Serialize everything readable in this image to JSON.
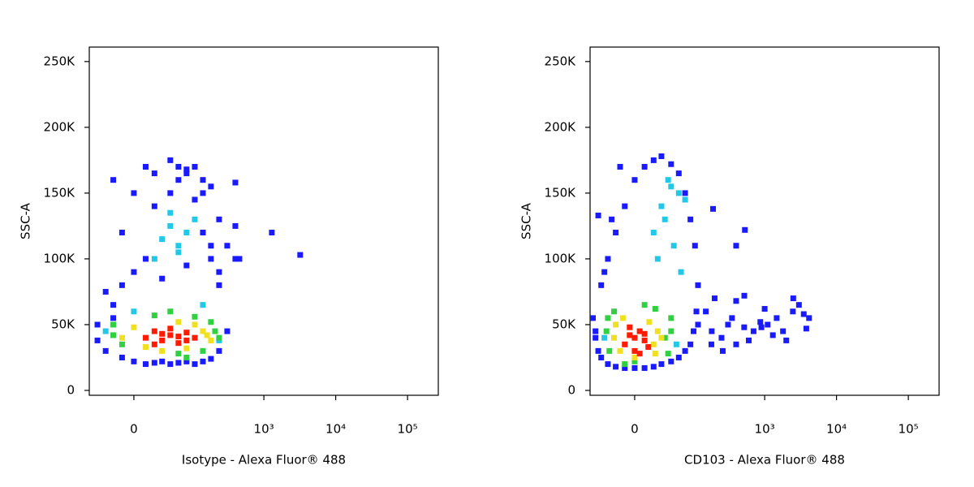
{
  "chart_data": [
    {
      "type": "scatter",
      "x_label": "Isotype - Alexa Fluor® 488",
      "y_label": "SSC-A",
      "xscale": "asinh",
      "xscale_width": 31,
      "xlim": [
        -61,
        268000
      ],
      "ylim": [
        -3700,
        261000
      ],
      "xticks": [
        0,
        {
          "value": 1000,
          "label": "10³"
        },
        {
          "value": 10000,
          "label": "10⁴"
        },
        {
          "value": 100000,
          "label": "10⁵"
        }
      ],
      "yticks": [
        0,
        {
          "value": 50000,
          "label": "50K"
        },
        {
          "value": 100000,
          "label": "100K"
        },
        {
          "value": 150000,
          "label": "150K"
        },
        {
          "value": 200000,
          "label": "200K"
        },
        {
          "value": 250000,
          "label": "250K"
        }
      ],
      "series": [
        {
          "color": "#1a1aff",
          "x": [
            -45,
            -32,
            -22,
            -12,
            0,
            12,
            22,
            32,
            45,
            61,
            81,
            107,
            140,
            182,
            237,
            308,
            400,
            456,
            1290,
            3200,
            -22,
            -12,
            0,
            12,
            22,
            45,
            61,
            81,
            107,
            140,
            182,
            237,
            -32,
            -45,
            -22,
            0,
            22,
            61,
            107,
            140,
            182,
            237,
            308,
            400,
            12,
            45,
            81,
            140,
            -12,
            32,
            81,
            182,
            237,
            400
          ],
          "y": [
            38000,
            30000,
            55000,
            25000,
            22000,
            20000,
            21000,
            22000,
            20000,
            21000,
            22000,
            20000,
            22000,
            24000,
            30000,
            45000,
            100000,
            100000,
            120000,
            103000,
            65000,
            80000,
            90000,
            100000,
            140000,
            150000,
            160000,
            165000,
            170000,
            160000,
            155000,
            130000,
            75000,
            50000,
            160000,
            150000,
            165000,
            170000,
            145000,
            120000,
            100000,
            90000,
            110000,
            125000,
            170000,
            175000,
            168000,
            150000,
            120000,
            85000,
            95000,
            110000,
            80000,
            158000
          ]
        },
        {
          "color": "#22c8e8",
          "x": [
            32,
            45,
            61,
            81,
            45,
            61,
            22,
            107,
            -32,
            237,
            0,
            140
          ],
          "y": [
            115000,
            125000,
            110000,
            120000,
            135000,
            105000,
            100000,
            130000,
            45000,
            38000,
            60000,
            65000
          ]
        },
        {
          "color": "#30d040",
          "x": [
            -22,
            -12,
            182,
            237,
            22,
            140,
            61,
            107,
            -22,
            208,
            45,
            81
          ],
          "y": [
            50000,
            35000,
            52000,
            40000,
            57000,
            30000,
            28000,
            56000,
            42000,
            45000,
            60000,
            25000
          ]
        },
        {
          "color": "#f0e020",
          "x": [
            0,
            12,
            140,
            182,
            61,
            107,
            32,
            81,
            -12,
            160
          ],
          "y": [
            48000,
            33000,
            45000,
            38000,
            52000,
            50000,
            30000,
            32000,
            40000,
            42000
          ]
        },
        {
          "color": "#ff1a00",
          "x": [
            12,
            22,
            32,
            45,
            61,
            81,
            107,
            22,
            45,
            81,
            32,
            61
          ],
          "y": [
            40000,
            45000,
            38000,
            42000,
            36000,
            44000,
            40000,
            35000,
            47000,
            38000,
            43000,
            41000
          ]
        }
      ]
    },
    {
      "type": "scatter",
      "x_label": "CD103 - Alexa Fluor® 488",
      "y_label": "SSC-A",
      "xscale": "asinh",
      "xscale_width": 31,
      "xlim": [
        -61,
        268000
      ],
      "ylim": [
        -3700,
        261000
      ],
      "xticks": [
        0,
        {
          "value": 1000,
          "label": "10³"
        },
        {
          "value": 10000,
          "label": "10⁴"
        },
        {
          "value": 100000,
          "label": "10⁵"
        }
      ],
      "yticks": [
        0,
        {
          "value": 50000,
          "label": "50K"
        },
        {
          "value": 100000,
          "label": "100K"
        },
        {
          "value": 150000,
          "label": "150K"
        },
        {
          "value": 200000,
          "label": "200K"
        },
        {
          "value": 250000,
          "label": "250K"
        }
      ],
      "series": [
        {
          "color": "#1a1aff",
          "x": [
            -50,
            -45,
            -40,
            -30,
            -20,
            -10,
            0,
            10,
            20,
            30,
            45,
            60,
            75,
            90,
            100,
            110,
            116,
            -40,
            -30,
            -20,
            -10,
            0,
            10,
            20,
            30,
            45,
            60,
            75,
            90,
            105,
            -55,
            -50,
            -35,
            -25,
            -15,
            116,
            182,
            308,
            518,
            870,
            1470,
            2470,
            4150,
            150,
            250,
            400,
            700,
            1100,
            1800,
            3000,
            200,
            350,
            600,
            1000,
            2000,
            3500,
            260,
            520,
            1300,
            2500,
            3800,
            180,
            400,
            900,
            -45,
            190,
            530,
            400
          ],
          "y": [
            40000,
            30000,
            25000,
            20000,
            18000,
            17000,
            17000,
            17000,
            18000,
            20000,
            22000,
            25000,
            30000,
            35000,
            45000,
            60000,
            80000,
            80000,
            100000,
            120000,
            140000,
            160000,
            170000,
            175000,
            178000,
            172000,
            165000,
            150000,
            130000,
            110000,
            55000,
            45000,
            90000,
            130000,
            170000,
            50000,
            45000,
            50000,
            48000,
            52000,
            55000,
            60000,
            55000,
            60000,
            40000,
            35000,
            45000,
            50000,
            45000,
            65000,
            70000,
            55000,
            38000,
            62000,
            38000,
            58000,
            30000,
            72000,
            42000,
            70000,
            47000,
            35000,
            68000,
            48000,
            133000,
            138000,
            122000,
            110000
          ]
        },
        {
          "color": "#22c8e8",
          "x": [
            20,
            30,
            45,
            60,
            35,
            50,
            75,
            25,
            -35,
            55,
            40,
            65
          ],
          "y": [
            120000,
            140000,
            155000,
            150000,
            130000,
            110000,
            145000,
            100000,
            40000,
            35000,
            160000,
            90000
          ]
        },
        {
          "color": "#30d040",
          "x": [
            -32,
            -28,
            35,
            45,
            -22,
            22,
            0,
            40,
            -30,
            10,
            -10,
            45
          ],
          "y": [
            45000,
            30000,
            40000,
            55000,
            60000,
            62000,
            22000,
            28000,
            55000,
            65000,
            20000,
            45000
          ]
        },
        {
          "color": "#f0e020",
          "x": [
            -22,
            -15,
            20,
            25,
            -20,
            15,
            0,
            22,
            -12,
            30
          ],
          "y": [
            40000,
            30000,
            35000,
            45000,
            50000,
            52000,
            25000,
            28000,
            55000,
            40000
          ]
        },
        {
          "color": "#ff1a00",
          "x": [
            -10,
            -5,
            0,
            5,
            10,
            14,
            -5,
            5,
            0,
            10
          ],
          "y": [
            35000,
            42000,
            30000,
            45000,
            38000,
            33000,
            48000,
            28000,
            40000,
            43000
          ]
        }
      ]
    }
  ]
}
